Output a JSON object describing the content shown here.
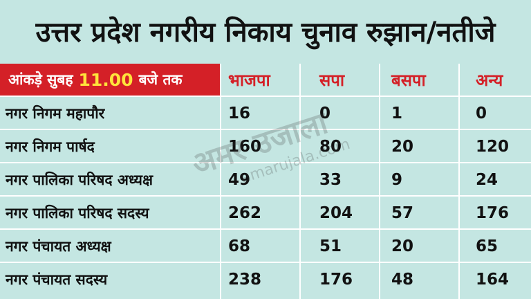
{
  "title": "उत्तर प्रदेश नगरीय निकाय चुनाव रुझान/नतीजे",
  "header": {
    "date_prefix": "आंकड़े सुबह",
    "time": "11.00",
    "date_suffix": "बजे तक",
    "columns": [
      "भाजपा",
      "सपा",
      "बसपा",
      "अन्य"
    ]
  },
  "rows": [
    {
      "label": "नगर निगम महापौर",
      "values": [
        "16",
        "0",
        "1",
        "0"
      ]
    },
    {
      "label": "नगर निगम पार्षद",
      "values": [
        "160",
        "80",
        "20",
        "120"
      ]
    },
    {
      "label": "नगर पालिका परिषद अध्यक्ष",
      "values": [
        "49",
        "33",
        "9",
        "24"
      ]
    },
    {
      "label": "नगर पालिका परिषद सदस्य",
      "values": [
        "262",
        "204",
        "57",
        "176"
      ]
    },
    {
      "label": "नगर पंचायत अध्यक्ष",
      "values": [
        "68",
        "51",
        "20",
        "65"
      ]
    },
    {
      "label": "नगर पंचायत सदस्य",
      "values": [
        "238",
        "176",
        "48",
        "164"
      ]
    }
  ],
  "watermark": {
    "brand": "अमर उजाला",
    "url": "amarujala.com"
  },
  "colors": {
    "background": "#c4e6e2",
    "accent": "#d42027",
    "highlight": "#ffe33b",
    "text": "#111111"
  }
}
